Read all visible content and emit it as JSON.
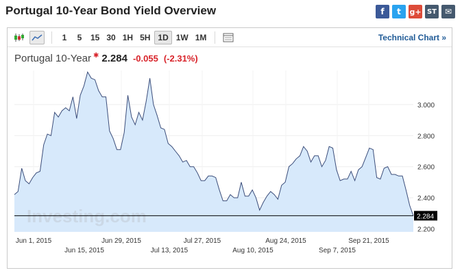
{
  "page": {
    "title": "Portugal 10-Year Bond Yield Overview"
  },
  "share": [
    {
      "name": "facebook-icon",
      "glyph": "f",
      "color": "#3b5998"
    },
    {
      "name": "twitter-icon",
      "glyph": "t",
      "color": "#2aa3ef"
    },
    {
      "name": "google-plus-icon",
      "glyph": "g+",
      "color": "#dd4b39"
    },
    {
      "name": "stocktwits-icon",
      "glyph": "ST",
      "color": "#45596e"
    },
    {
      "name": "email-icon",
      "glyph": "✉",
      "color": "#45596e"
    }
  ],
  "toolbar": {
    "intervals": [
      "1",
      "5",
      "15",
      "30",
      "1H",
      "5H",
      "1D",
      "1W",
      "1M"
    ],
    "active_interval": "1D",
    "technical_chart_label": "Technical Chart »"
  },
  "quote": {
    "name": "Portugal 10-Year",
    "last": "2.284",
    "change": "-0.055",
    "change_pct": "(-2.31%)"
  },
  "chart_data": {
    "type": "area",
    "watermark": "Investing.com",
    "y_ticks": [
      "2.200",
      "2.400",
      "2.600",
      "2.800",
      "3.000"
    ],
    "ylim": [
      2.18,
      3.22
    ],
    "x_ticks_row1": [
      "Jun 1, 2015",
      "Jun 29, 2015",
      "Jul 27, 2015",
      "Aug 24, 2015",
      "Sep 21, 2015"
    ],
    "x_ticks_row2": [
      "Jun 15, 2015",
      "Jul 13, 2015",
      "Aug 10, 2015",
      "Sep 7, 2015"
    ],
    "last_value": 2.284,
    "last_label": "2.284",
    "colors": {
      "line": "#3b4d7a",
      "fill": "#d7e9fb",
      "last_line": "#000000"
    },
    "series": [
      {
        "values": [
          2.42,
          2.44,
          2.59,
          2.51,
          2.49,
          2.53,
          2.56,
          2.57,
          2.74,
          2.81,
          2.8,
          2.95,
          2.92,
          2.96,
          2.98,
          2.96,
          3.05,
          2.91,
          3.06,
          3.12,
          3.21,
          3.17,
          3.16,
          3.09,
          3.05,
          3.05,
          2.83,
          2.78,
          2.71,
          2.71,
          2.82,
          3.06,
          2.92,
          2.87,
          2.95,
          2.9,
          3.02,
          3.17,
          3.0,
          2.93,
          2.85,
          2.84,
          2.75,
          2.73,
          2.7,
          2.67,
          2.63,
          2.64,
          2.6,
          2.6,
          2.56,
          2.51,
          2.51,
          2.54,
          2.54,
          2.53,
          2.45,
          2.38,
          2.38,
          2.42,
          2.4,
          2.4,
          2.5,
          2.41,
          2.41,
          2.45,
          2.4,
          2.32,
          2.37,
          2.41,
          2.44,
          2.42,
          2.39,
          2.48,
          2.5,
          2.6,
          2.62,
          2.65,
          2.67,
          2.73,
          2.7,
          2.63,
          2.67,
          2.67,
          2.6,
          2.64,
          2.73,
          2.72,
          2.58,
          2.51,
          2.52,
          2.52,
          2.57,
          2.51,
          2.58,
          2.6,
          2.66,
          2.72,
          2.71,
          2.53,
          2.52,
          2.59,
          2.6,
          2.55,
          2.55,
          2.54,
          2.54,
          2.45,
          2.35,
          2.284
        ]
      }
    ]
  }
}
